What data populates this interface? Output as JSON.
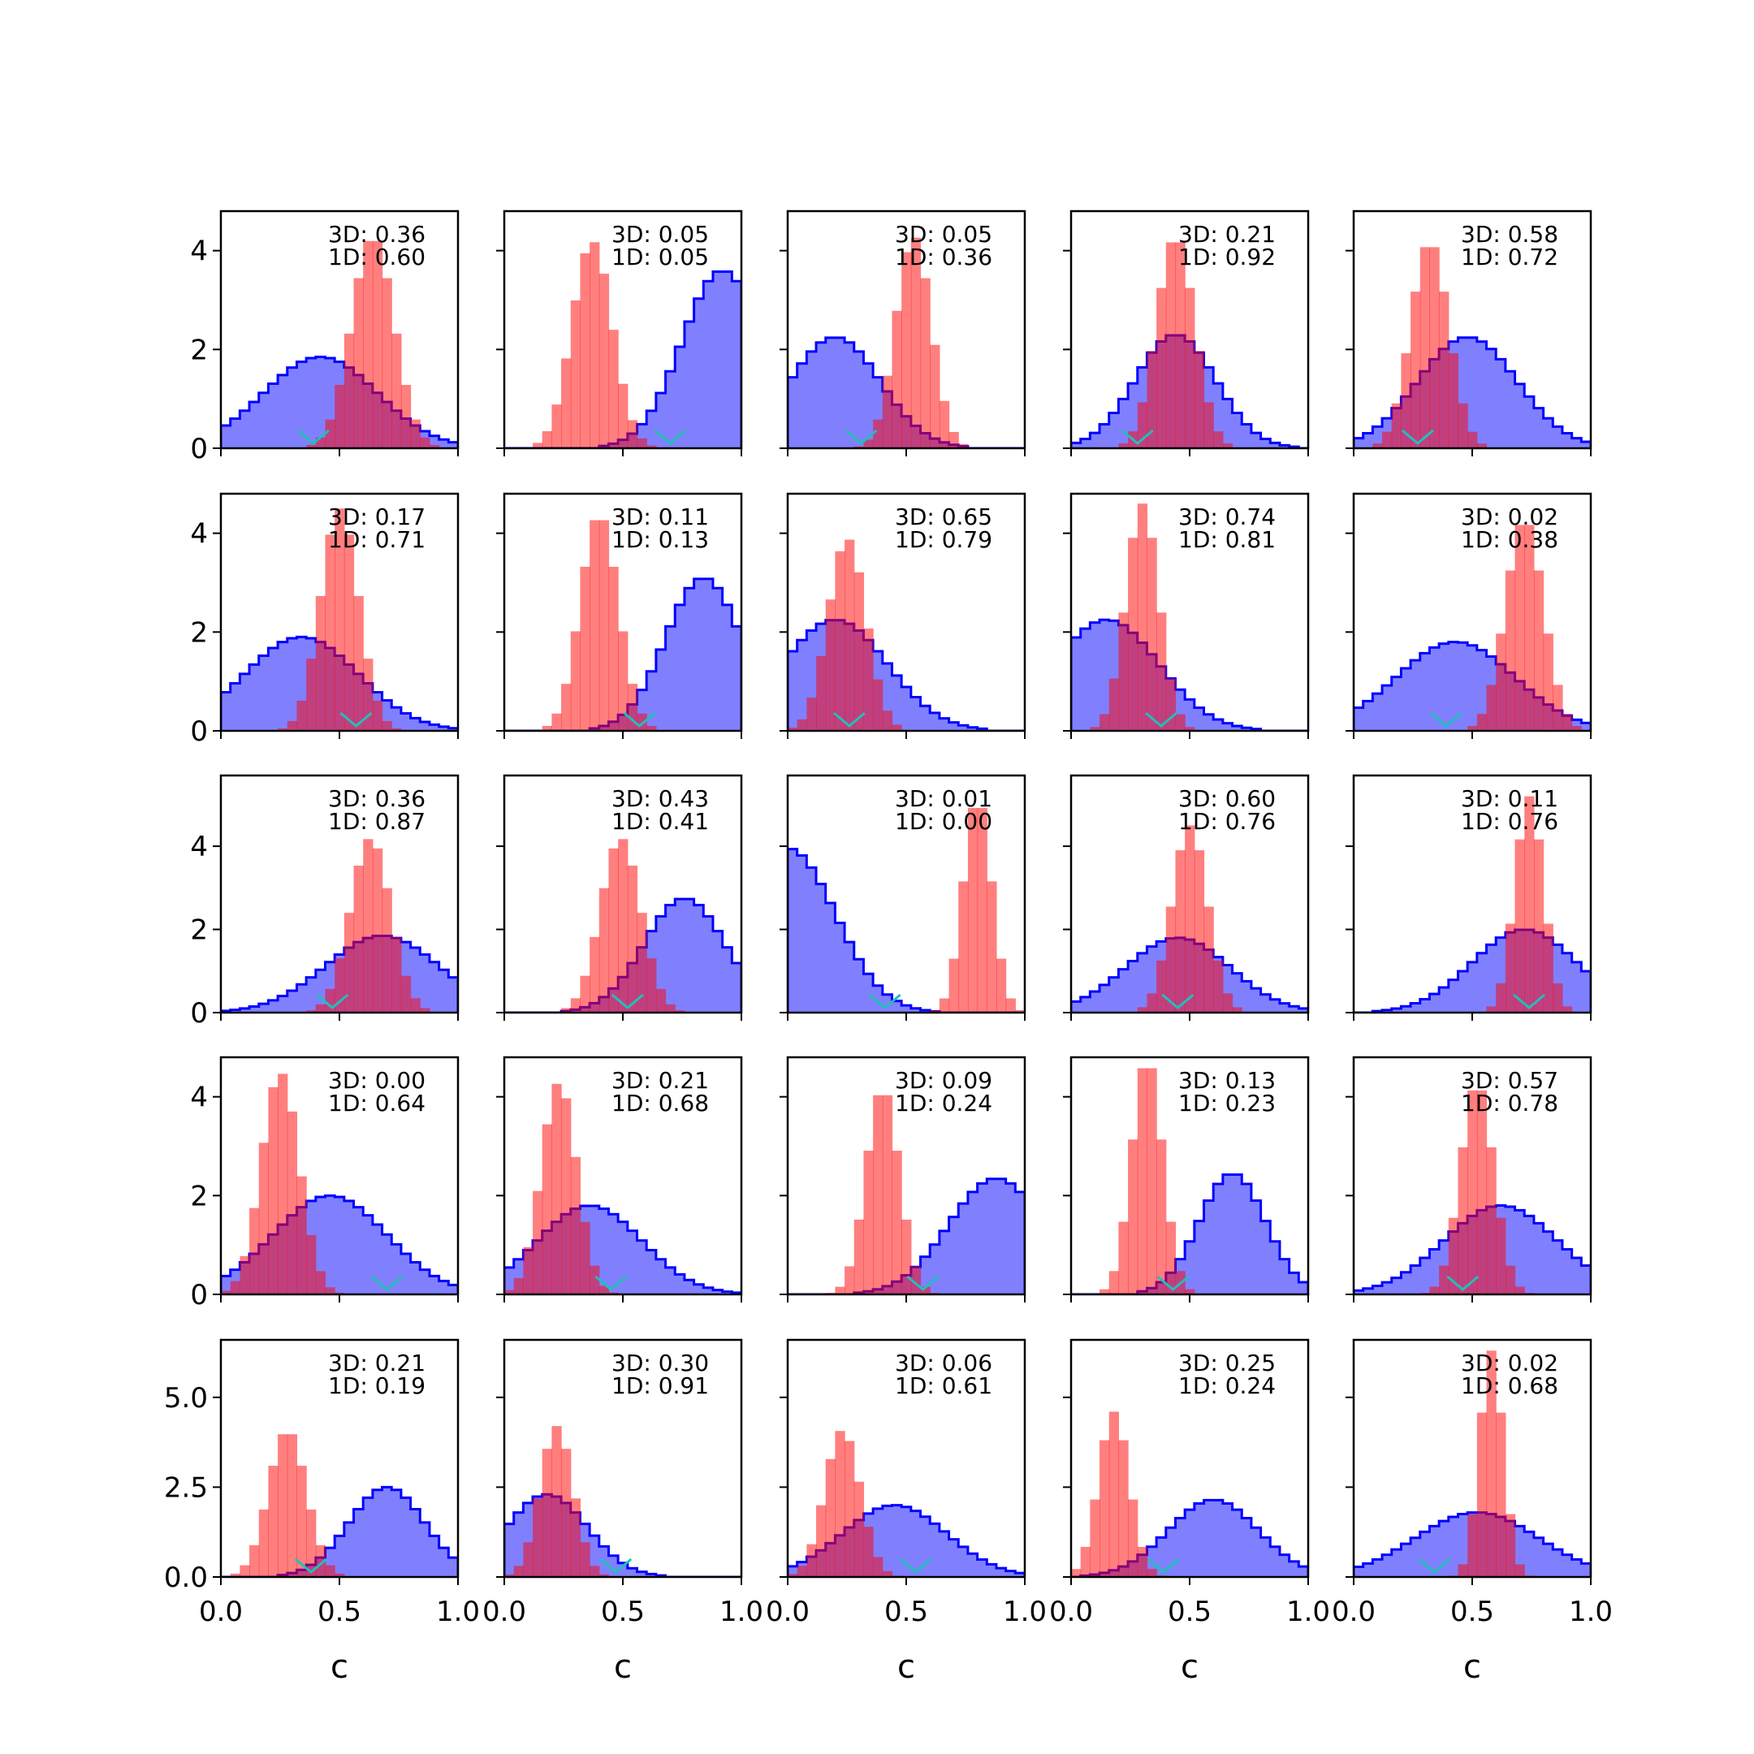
{
  "chart_data": {
    "type": "histogram-grid",
    "rows": 5,
    "cols": 5,
    "xlabel": "c",
    "xlim": [
      0,
      1
    ],
    "xticks": [
      0.0,
      0.5,
      1.0
    ],
    "xtick_labels": [
      "0.0",
      "0.5",
      "1.0"
    ],
    "row_ylim": [
      [
        0,
        4.8
      ],
      [
        0,
        4.8
      ],
      [
        0,
        5.7
      ],
      [
        0,
        4.8
      ],
      [
        0,
        6.6
      ]
    ],
    "row_yticks": [
      [
        0,
        2,
        4
      ],
      [
        0,
        2,
        4
      ],
      [
        0,
        2,
        4
      ],
      [
        0,
        2,
        4
      ],
      [
        0.0,
        2.5,
        5.0
      ]
    ],
    "row_ytick_labels": [
      [
        "0",
        "2",
        "4"
      ],
      [
        "0",
        "2",
        "4"
      ],
      [
        "0",
        "2",
        "4"
      ],
      [
        "0",
        "2",
        "4"
      ],
      [
        "0.0",
        "2.5",
        "5.0"
      ]
    ],
    "colors": {
      "blue_fill": "#8080ff",
      "blue_edge": "#0000ff",
      "red_fill": "#ff8080",
      "marker": "#20c0b8"
    },
    "series_legend": [],
    "panels": [
      {
        "label_3d": "3D: 0.36",
        "label_1d": "1D: 0.60",
        "marker": 0.39,
        "blue": {
          "mu": 0.42,
          "sd": 0.24,
          "peak": 1.85
        },
        "red": {
          "mu": 0.64,
          "sd": 0.09,
          "peak": 4.3
        }
      },
      {
        "label_3d": "3D: 0.05",
        "label_1d": "1D: 0.05",
        "marker": 0.7,
        "blue": {
          "mu": 0.92,
          "sd": 0.17,
          "peak": 3.6
        },
        "red": {
          "mu": 0.37,
          "sd": 0.085,
          "peak": 4.2
        }
      },
      {
        "label_3d": "3D: 0.05",
        "label_1d": "1D: 0.36",
        "marker": 0.31,
        "blue": {
          "mu": 0.2,
          "sd": 0.19,
          "peak": 2.25
        },
        "red": {
          "mu": 0.53,
          "sd": 0.075,
          "peak": 4.3
        }
      },
      {
        "label_3d": "3D: 0.21",
        "label_1d": "1D: 0.92",
        "marker": 0.28,
        "blue": {
          "mu": 0.44,
          "sd": 0.17,
          "peak": 2.3
        },
        "red": {
          "mu": 0.44,
          "sd": 0.08,
          "peak": 4.3
        }
      },
      {
        "label_3d": "3D: 0.58",
        "label_1d": "1D: 0.72",
        "marker": 0.27,
        "blue": {
          "mu": 0.48,
          "sd": 0.21,
          "peak": 2.25
        },
        "red": {
          "mu": 0.32,
          "sd": 0.08,
          "peak": 4.2
        }
      },
      {
        "label_3d": "3D: 0.17",
        "label_1d": "1D: 0.71",
        "marker": 0.57,
        "blue": {
          "mu": 0.34,
          "sd": 0.24,
          "peak": 1.9
        },
        "red": {
          "mu": 0.5,
          "sd": 0.08,
          "peak": 4.5
        }
      },
      {
        "label_3d": "3D: 0.11",
        "label_1d": "1D: 0.13",
        "marker": 0.57,
        "blue": {
          "mu": 0.84,
          "sd": 0.16,
          "peak": 3.1
        },
        "red": {
          "mu": 0.4,
          "sd": 0.08,
          "peak": 4.4
        }
      },
      {
        "label_3d": "3D: 0.65",
        "label_1d": "1D: 0.79",
        "marker": 0.26,
        "blue": {
          "mu": 0.2,
          "sd": 0.22,
          "peak": 2.25
        },
        "red": {
          "mu": 0.25,
          "sd": 0.08,
          "peak": 3.9
        }
      },
      {
        "label_3d": "3D: 0.74",
        "label_1d": "1D: 0.81",
        "marker": 0.38,
        "blue": {
          "mu": 0.15,
          "sd": 0.22,
          "peak": 2.25
        },
        "red": {
          "mu": 0.3,
          "sd": 0.07,
          "peak": 4.6
        }
      },
      {
        "label_3d": "3D: 0.02",
        "label_1d": "1D: 0.38",
        "marker": 0.39,
        "blue": {
          "mu": 0.43,
          "sd": 0.25,
          "peak": 1.8
        },
        "red": {
          "mu": 0.72,
          "sd": 0.08,
          "peak": 4.3
        }
      },
      {
        "label_3d": "3D: 0.36",
        "label_1d": "1D: 0.87",
        "marker": 0.47,
        "blue": {
          "mu": 0.68,
          "sd": 0.24,
          "peak": 1.85
        },
        "red": {
          "mu": 0.63,
          "sd": 0.085,
          "peak": 4.2
        }
      },
      {
        "label_3d": "3D: 0.43",
        "label_1d": "1D: 0.41",
        "marker": 0.52,
        "blue": {
          "mu": 0.76,
          "sd": 0.17,
          "peak": 2.75
        },
        "red": {
          "mu": 0.49,
          "sd": 0.085,
          "peak": 4.2
        }
      },
      {
        "label_3d": "3D: 0.01",
        "label_1d": "1D: 0.00",
        "marker": 0.41,
        "blue": {
          "mu": 0.0,
          "sd": 0.2,
          "peak": 3.95
        },
        "red": {
          "mu": 0.8,
          "sd": 0.06,
          "peak": 5.2
        }
      },
      {
        "label_3d": "3D: 0.60",
        "label_1d": "1D: 0.76",
        "marker": 0.45,
        "blue": {
          "mu": 0.45,
          "sd": 0.22,
          "peak": 1.8
        },
        "red": {
          "mu": 0.5,
          "sd": 0.075,
          "peak": 4.5
        }
      },
      {
        "label_3d": "3D: 0.11",
        "label_1d": "1D: 0.76",
        "marker": 0.74,
        "blue": {
          "mu": 0.72,
          "sd": 0.22,
          "peak": 2.0
        },
        "red": {
          "mu": 0.74,
          "sd": 0.06,
          "peak": 5.2
        }
      },
      {
        "label_3d": "3D: 0.00",
        "label_1d": "1D: 0.64",
        "marker": 0.7,
        "blue": {
          "mu": 0.46,
          "sd": 0.24,
          "peak": 2.0
        },
        "red": {
          "mu": 0.25,
          "sd": 0.08,
          "peak": 4.5
        }
      },
      {
        "label_3d": "3D: 0.21",
        "label_1d": "1D: 0.68",
        "marker": 0.45,
        "blue": {
          "mu": 0.36,
          "sd": 0.22,
          "peak": 1.8
        },
        "red": {
          "mu": 0.23,
          "sd": 0.075,
          "peak": 4.3
        }
      },
      {
        "label_3d": "3D: 0.09",
        "label_1d": "1D: 0.24",
        "marker": 0.57,
        "blue": {
          "mu": 0.88,
          "sd": 0.2,
          "peak": 2.35
        },
        "red": {
          "mu": 0.4,
          "sd": 0.07,
          "peak": 4.2
        }
      },
      {
        "label_3d": "3D: 0.13",
        "label_1d": "1D: 0.23",
        "marker": 0.43,
        "blue": {
          "mu": 0.68,
          "sd": 0.14,
          "peak": 2.45
        },
        "red": {
          "mu": 0.32,
          "sd": 0.065,
          "peak": 4.8
        }
      },
      {
        "label_3d": "3D: 0.57",
        "label_1d": "1D: 0.78",
        "marker": 0.46,
        "blue": {
          "mu": 0.62,
          "sd": 0.24,
          "peak": 1.8
        },
        "red": {
          "mu": 0.52,
          "sd": 0.07,
          "peak": 4.3
        }
      },
      {
        "label_3d": "3D: 0.21",
        "label_1d": "1D: 0.19",
        "marker": 0.38,
        "blue": {
          "mu": 0.7,
          "sd": 0.16,
          "peak": 2.5
        },
        "red": {
          "mu": 0.28,
          "sd": 0.08,
          "peak": 4.1
        }
      },
      {
        "label_3d": "3D: 0.30",
        "label_1d": "1D: 0.91",
        "marker": 0.47,
        "blue": {
          "mu": 0.18,
          "sd": 0.17,
          "peak": 2.3
        },
        "red": {
          "mu": 0.22,
          "sd": 0.07,
          "peak": 4.2
        }
      },
      {
        "label_3d": "3D: 0.06",
        "label_1d": "1D: 0.61",
        "marker": 0.54,
        "blue": {
          "mu": 0.45,
          "sd": 0.22,
          "peak": 2.0
        },
        "red": {
          "mu": 0.23,
          "sd": 0.075,
          "peak": 4.1
        }
      },
      {
        "label_3d": "3D: 0.25",
        "label_1d": "1D: 0.24",
        "marker": 0.39,
        "blue": {
          "mu": 0.6,
          "sd": 0.19,
          "peak": 2.15
        },
        "red": {
          "mu": 0.18,
          "sd": 0.065,
          "peak": 4.6
        }
      },
      {
        "label_3d": "3D: 0.02",
        "label_1d": "1D: 0.68",
        "marker": 0.34,
        "blue": {
          "mu": 0.52,
          "sd": 0.26,
          "peak": 1.8
        },
        "red": {
          "mu": 0.58,
          "sd": 0.05,
          "peak": 6.3
        }
      }
    ]
  }
}
